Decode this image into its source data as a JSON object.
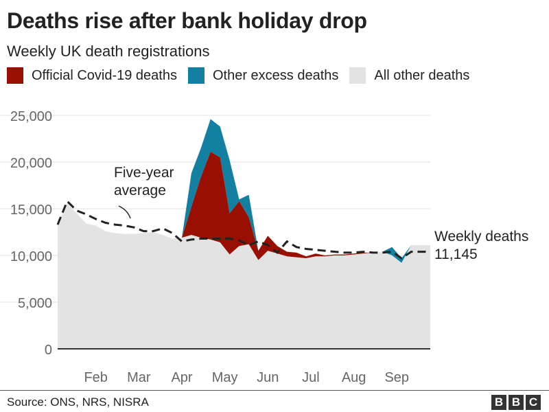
{
  "header": {
    "title": "Deaths rise after bank holiday drop",
    "subtitle": "Weekly UK death registrations"
  },
  "legend": [
    {
      "label": "Official Covid-19 deaths",
      "color": "#990f02"
    },
    {
      "label": "Other excess deaths",
      "color": "#1380a1"
    },
    {
      "label": "All other deaths",
      "color": "#e3e3e3"
    }
  ],
  "footer": {
    "source": "Source: ONS, NRS, NISRA",
    "logo_letters": [
      "B",
      "B",
      "C"
    ]
  },
  "chart_data": {
    "type": "area",
    "xlabel": "",
    "ylabel": "",
    "ylim": [
      0,
      25000
    ],
    "yticks": [
      0,
      5000,
      10000,
      15000,
      20000,
      25000
    ],
    "ytick_labels": [
      "0",
      "5,000",
      "10,000",
      "15,000",
      "20,000",
      "25,000"
    ],
    "xtick_labels": [
      "Feb",
      "Mar",
      "Apr",
      "May",
      "Jun",
      "Jul",
      "Aug",
      "Sep"
    ],
    "xtick_weeks": [
      5,
      9.5,
      14,
      18.5,
      23,
      27.5,
      32,
      36.5
    ],
    "grid": true,
    "weeks": [
      1,
      2,
      3,
      4,
      5,
      6,
      7,
      8,
      9,
      10,
      11,
      12,
      13,
      14,
      15,
      16,
      17,
      18,
      19,
      20,
      21,
      22,
      23,
      24,
      25,
      26,
      27,
      28,
      29,
      30,
      31,
      32,
      33,
      34,
      35,
      36,
      37,
      38,
      39,
      40
    ],
    "series": [
      {
        "name": "All other deaths",
        "color": "#e3e3e3",
        "values": [
          13300,
          15600,
          14500,
          13400,
          13200,
          12600,
          12400,
          12300,
          12300,
          12400,
          12500,
          12200,
          11800,
          11900,
          12200,
          11900,
          11700,
          11400,
          10100,
          11000,
          11200,
          9500,
          10500,
          10200,
          9900,
          9800,
          9700,
          9900,
          9900,
          10000,
          10000,
          10100,
          10200,
          10300,
          10400,
          10000,
          9200,
          11100,
          11100,
          11100
        ]
      },
      {
        "name": "Official Covid-19 deaths",
        "color": "#990f02",
        "values": [
          0,
          0,
          0,
          0,
          0,
          0,
          0,
          0,
          0,
          0,
          0,
          0,
          0,
          0,
          3000,
          6500,
          9400,
          9100,
          4400,
          4800,
          2900,
          1000,
          1600,
          800,
          500,
          500,
          200,
          300,
          100,
          100,
          100,
          100,
          100,
          0,
          0,
          0,
          0,
          0,
          0,
          0
        ]
      },
      {
        "name": "Other excess deaths",
        "color": "#1380a1",
        "values": [
          0,
          0,
          0,
          0,
          0,
          0,
          0,
          0,
          0,
          0,
          0,
          0,
          0,
          0,
          3600,
          3100,
          3500,
          3300,
          5700,
          200,
          2400,
          0,
          0,
          0,
          0,
          0,
          0,
          0,
          0,
          0,
          0,
          0,
          0,
          0,
          0,
          900,
          500,
          0,
          0,
          0
        ]
      }
    ],
    "five_year_average": {
      "label": "Five-year average",
      "values": [
        13300,
        15800,
        14800,
        14400,
        13900,
        13500,
        13300,
        13200,
        13000,
        12600,
        12600,
        12900,
        12400,
        11500,
        11700,
        11800,
        11800,
        11800,
        11800,
        11600,
        11100,
        11500,
        11100,
        10300,
        11500,
        10900,
        10700,
        10600,
        10500,
        10400,
        10300,
        10300,
        10400,
        10300,
        10300,
        10400,
        9700,
        10400,
        10400,
        10400
      ]
    },
    "annotations": [
      {
        "text": "Five-year average",
        "lines": [
          "Five-year",
          "average"
        ]
      },
      {
        "text": "Weekly deaths 11,145",
        "lines": [
          "Weekly deaths",
          "11,145"
        ],
        "value": 11145
      }
    ]
  }
}
